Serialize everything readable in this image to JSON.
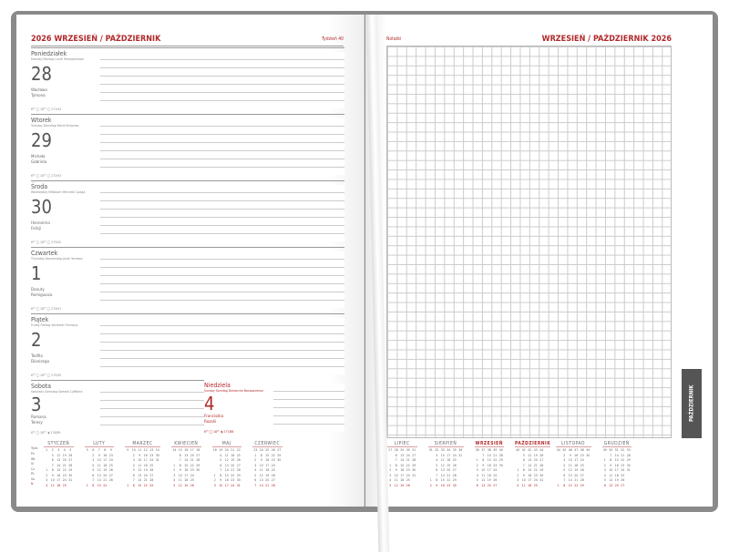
{
  "left_page": {
    "title": "2026 WRZESIEŃ / PAŹDZIERNIK",
    "week": "Tydzień 40",
    "days": [
      {
        "name": "Poniedziałek",
        "sub": "Monday Montag Lundi Понедельник",
        "num": "28",
        "names": "Wacława\nTymona",
        "sun": "6⁰⁰ ◯ 18⁰⁰   ◯   271/94"
      },
      {
        "name": "Wtorek",
        "sub": "Tuesday Dienstag Mardi Вторник",
        "num": "29",
        "names": "Michała\nGabriela",
        "sun": "6⁰⁰ ◯ 18⁰⁰   ◯   272/93"
      },
      {
        "name": "Środa",
        "sub": "Wednesday Mittwoch Mercredi Среда",
        "num": "30",
        "names": "Hieronima\nFelicji",
        "sun": "6⁰⁰ ◯ 18⁰⁰   ◯   273/92"
      },
      {
        "name": "Czwartek",
        "sub": "Thursday Donnerstag Jeudi Четверг",
        "num": "1",
        "names": "Danuty\nRemigiusza",
        "sun": "6⁰⁰ ◯ 18⁰⁰   ◯   274/91"
      },
      {
        "name": "Piątek",
        "sub": "Friday Freitag Vendredi Пятница",
        "num": "2",
        "names": "Teofila\nDionizego",
        "sun": "6⁰⁰ ◯ 18⁰⁰   ◯   275/90"
      }
    ],
    "weekend": [
      {
        "name": "Sobota",
        "sub": "Saturday Samstag Samedi Суббота",
        "num": "3",
        "names": "Romana\nTeresy",
        "sun": "6⁰⁰ ◯ 18⁰⁰   ◑   276/89"
      },
      {
        "name": "Niedziela",
        "sub": "Sunday Sonntag Dimanche Воскресенье",
        "num": "4",
        "names": "Franciszka\nRozalii",
        "sun": "6⁰⁰ ◯ 18⁰⁰   ◑   277/88"
      }
    ]
  },
  "right_page": {
    "notes_label": "Notatki",
    "title": "WRZESIEŃ / PAŹDZIERNIK 2026",
    "tab": "PAŹDZIERNIK"
  },
  "weekday_header": "Tydz.",
  "weekdays": [
    "Pn",
    "Wt",
    "Śr",
    "Cz",
    "Pt",
    "So",
    "N"
  ],
  "colors": {
    "accent": "#b0282a",
    "cover": "#8a8a8a",
    "tab": "#555555"
  },
  "calendar_left": [
    {
      "month": "STYCZEŃ",
      "weeks": [
        1,
        2,
        3,
        4,
        5
      ],
      "rows": [
        [
          "",
          5,
          12,
          19,
          26
        ],
        [
          "",
          6,
          13,
          20,
          27
        ],
        [
          "",
          7,
          14,
          21,
          28
        ],
        [
          1,
          8,
          15,
          22,
          29
        ],
        [
          2,
          9,
          16,
          23,
          30
        ],
        [
          3,
          10,
          17,
          24,
          31
        ],
        [
          4,
          11,
          18,
          25,
          ""
        ]
      ]
    },
    {
      "month": "LUTY",
      "weeks": [
        5,
        6,
        7,
        8,
        9
      ],
      "rows": [
        [
          "",
          2,
          9,
          16,
          23
        ],
        [
          "",
          3,
          10,
          17,
          24
        ],
        [
          "",
          4,
          11,
          18,
          25
        ],
        [
          "",
          5,
          12,
          19,
          26
        ],
        [
          "",
          6,
          13,
          20,
          27
        ],
        [
          "",
          7,
          14,
          21,
          28
        ],
        [
          1,
          8,
          15,
          22,
          ""
        ]
      ]
    },
    {
      "month": "MARZEC",
      "weeks": [
        9,
        10,
        11,
        12,
        13,
        14
      ],
      "rows": [
        [
          "",
          2,
          9,
          16,
          23,
          30
        ],
        [
          "",
          3,
          10,
          17,
          24,
          31
        ],
        [
          "",
          4,
          11,
          18,
          25,
          ""
        ],
        [
          "",
          5,
          12,
          19,
          26,
          ""
        ],
        [
          "",
          6,
          13,
          20,
          27,
          ""
        ],
        [
          "",
          7,
          14,
          21,
          28,
          ""
        ],
        [
          1,
          8,
          15,
          22,
          29,
          ""
        ]
      ]
    },
    {
      "month": "KWIECIEŃ",
      "weeks": [
        14,
        15,
        16,
        17,
        18
      ],
      "rows": [
        [
          "",
          6,
          13,
          20,
          27
        ],
        [
          "",
          7,
          14,
          21,
          28
        ],
        [
          1,
          8,
          15,
          22,
          29
        ],
        [
          2,
          9,
          16,
          23,
          30
        ],
        [
          3,
          10,
          17,
          24,
          ""
        ],
        [
          4,
          11,
          18,
          25,
          ""
        ],
        [
          5,
          12,
          19,
          26,
          ""
        ]
      ]
    },
    {
      "month": "MAJ",
      "weeks": [
        18,
        19,
        20,
        21,
        22
      ],
      "rows": [
        [
          "",
          4,
          11,
          18,
          25
        ],
        [
          "",
          5,
          12,
          19,
          26
        ],
        [
          "",
          6,
          13,
          20,
          27
        ],
        [
          "",
          7,
          14,
          21,
          28
        ],
        [
          1,
          8,
          15,
          22,
          29
        ],
        [
          2,
          9,
          16,
          23,
          30
        ],
        [
          3,
          10,
          17,
          24,
          31
        ]
      ]
    },
    {
      "month": "CZERWIEC",
      "weeks": [
        23,
        24,
        25,
        26,
        27
      ],
      "rows": [
        [
          1,
          8,
          15,
          22,
          29
        ],
        [
          2,
          9,
          16,
          23,
          30
        ],
        [
          3,
          10,
          17,
          24,
          ""
        ],
        [
          4,
          11,
          18,
          25,
          ""
        ],
        [
          5,
          12,
          19,
          26,
          ""
        ],
        [
          6,
          13,
          20,
          27,
          ""
        ],
        [
          7,
          14,
          21,
          28,
          ""
        ]
      ]
    }
  ],
  "calendar_right": [
    {
      "month": "LIPIEC",
      "weeks": [
        27,
        28,
        29,
        30,
        31
      ],
      "rows": [
        [
          "",
          6,
          13,
          20,
          27
        ],
        [
          "",
          7,
          14,
          21,
          28
        ],
        [
          1,
          8,
          15,
          22,
          29
        ],
        [
          2,
          9,
          16,
          23,
          30
        ],
        [
          3,
          10,
          17,
          24,
          31
        ],
        [
          4,
          11,
          18,
          25,
          ""
        ],
        [
          5,
          12,
          19,
          26,
          ""
        ]
      ]
    },
    {
      "month": "SIERPIEŃ",
      "weeks": [
        31,
        32,
        33,
        34,
        35,
        36
      ],
      "rows": [
        [
          "",
          3,
          10,
          17,
          24,
          31
        ],
        [
          "",
          4,
          11,
          18,
          25,
          ""
        ],
        [
          "",
          5,
          12,
          19,
          26,
          ""
        ],
        [
          "",
          6,
          13,
          20,
          27,
          ""
        ],
        [
          "",
          7,
          14,
          21,
          28,
          ""
        ],
        [
          1,
          8,
          15,
          22,
          29,
          ""
        ],
        [
          2,
          9,
          16,
          23,
          30,
          ""
        ]
      ]
    },
    {
      "month": "WRZESIEŃ",
      "current": true,
      "weeks": [
        36,
        37,
        38,
        39,
        40
      ],
      "rows": [
        [
          "",
          7,
          14,
          21,
          28
        ],
        [
          1,
          8,
          15,
          22,
          29
        ],
        [
          2,
          9,
          16,
          23,
          30
        ],
        [
          3,
          10,
          17,
          24,
          ""
        ],
        [
          4,
          11,
          18,
          25,
          ""
        ],
        [
          5,
          12,
          19,
          26,
          ""
        ],
        [
          6,
          13,
          20,
          27,
          ""
        ]
      ]
    },
    {
      "month": "PAŹDZIERNIK",
      "current": true,
      "weeks": [
        40,
        41,
        42,
        43,
        44
      ],
      "rows": [
        [
          "",
          5,
          12,
          19,
          26
        ],
        [
          "",
          6,
          13,
          20,
          27
        ],
        [
          "",
          7,
          14,
          21,
          28
        ],
        [
          1,
          8,
          15,
          22,
          29
        ],
        [
          2,
          9,
          16,
          23,
          30
        ],
        [
          3,
          10,
          17,
          24,
          31
        ],
        [
          4,
          11,
          18,
          25,
          ""
        ]
      ]
    },
    {
      "month": "LISTOPAD",
      "weeks": [
        44,
        45,
        46,
        47,
        48,
        49
      ],
      "rows": [
        [
          "",
          2,
          9,
          16,
          23,
          30
        ],
        [
          "",
          3,
          10,
          17,
          24,
          ""
        ],
        [
          "",
          4,
          11,
          18,
          25,
          ""
        ],
        [
          "",
          5,
          12,
          19,
          26,
          ""
        ],
        [
          "",
          6,
          13,
          20,
          27,
          ""
        ],
        [
          "",
          7,
          14,
          21,
          28,
          ""
        ],
        [
          1,
          8,
          15,
          22,
          29,
          ""
        ]
      ]
    },
    {
      "month": "GRUDZIEŃ",
      "weeks": [
        49,
        50,
        51,
        52,
        53
      ],
      "rows": [
        [
          "",
          7,
          14,
          21,
          28
        ],
        [
          1,
          8,
          15,
          22,
          29
        ],
        [
          2,
          9,
          16,
          23,
          30
        ],
        [
          3,
          10,
          17,
          24,
          31
        ],
        [
          4,
          11,
          18,
          25,
          ""
        ],
        [
          5,
          12,
          19,
          26,
          ""
        ],
        [
          6,
          13,
          20,
          27,
          ""
        ]
      ]
    }
  ]
}
